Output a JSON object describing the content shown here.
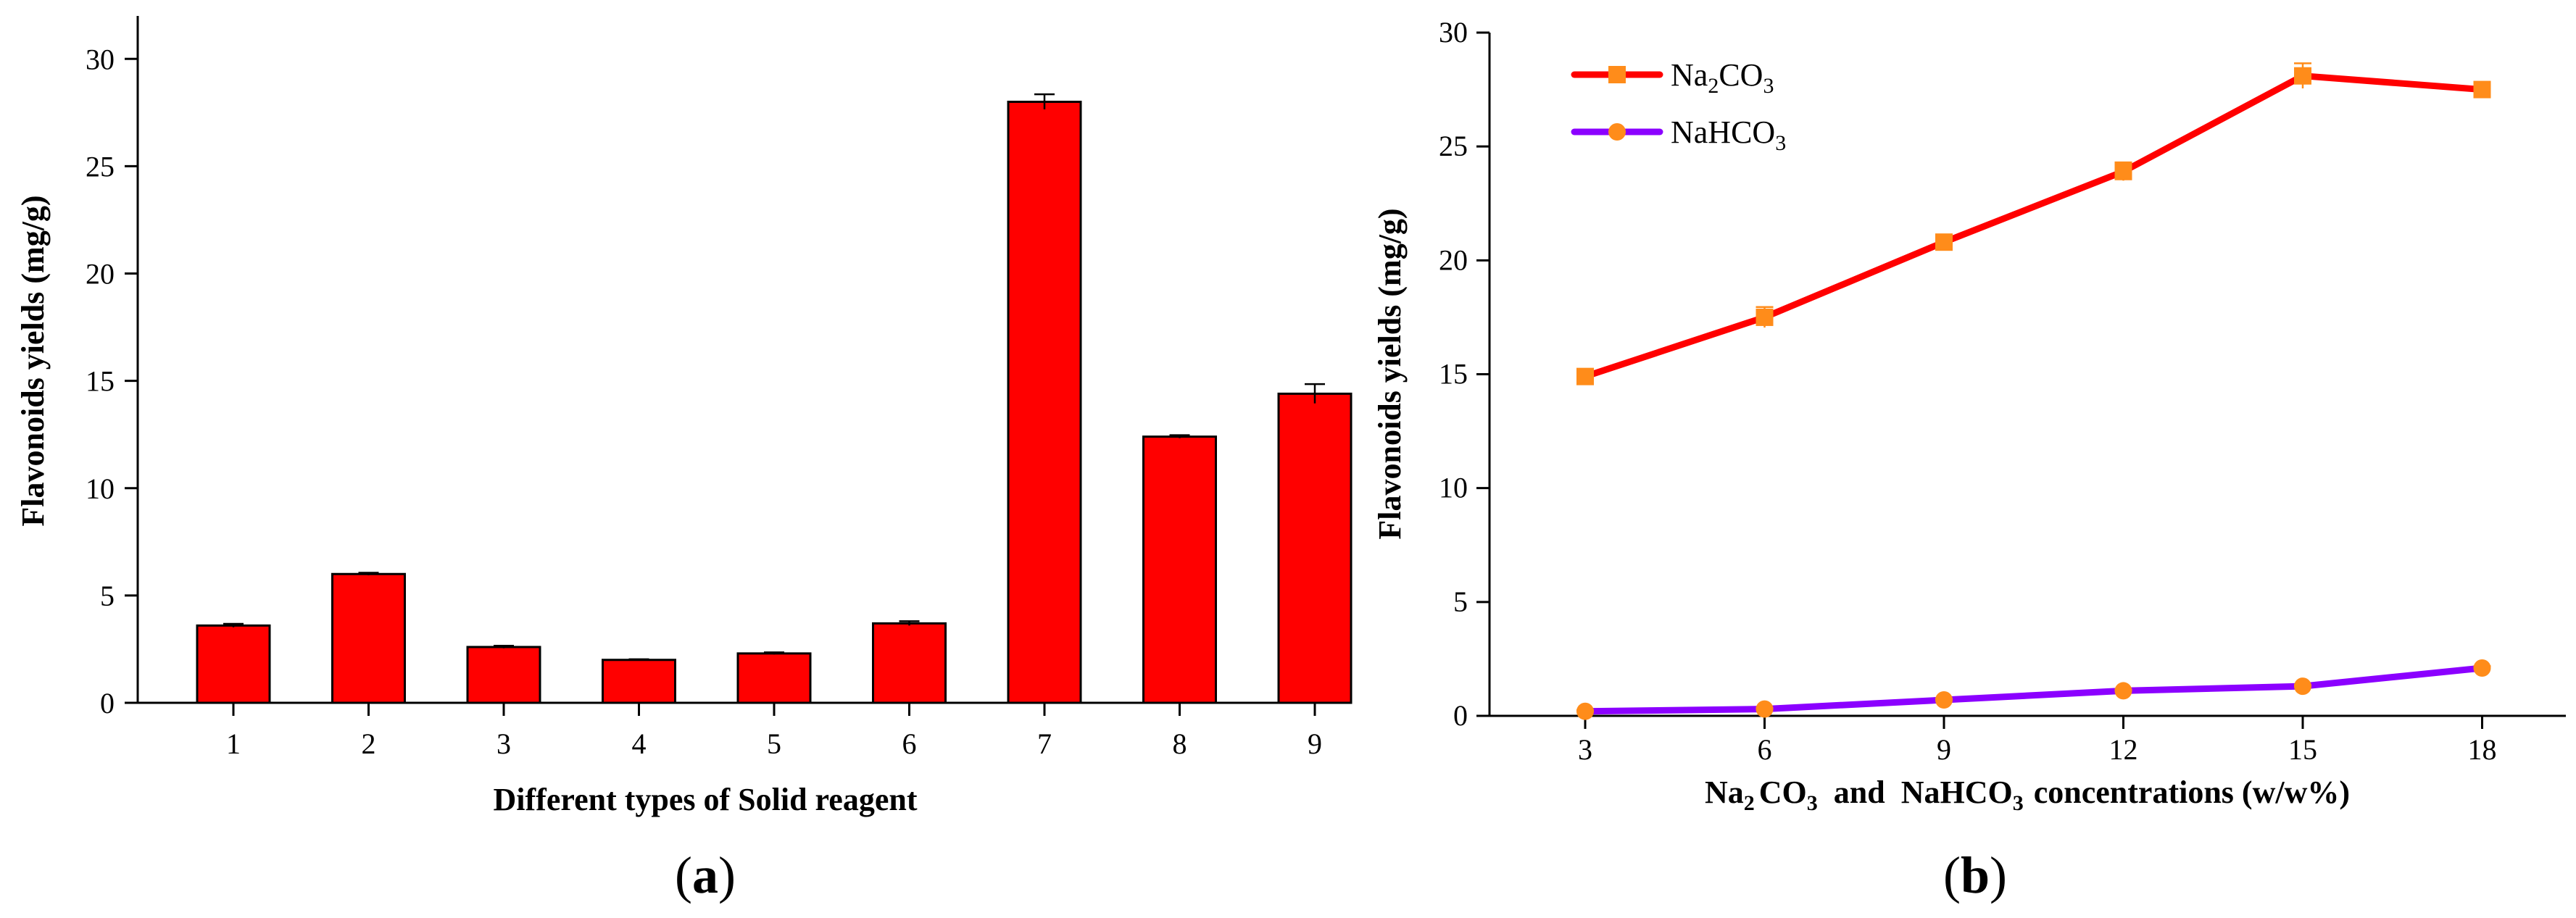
{
  "chart_data": [
    {
      "type": "bar",
      "panel_label": "a",
      "categories": [
        "1",
        "2",
        "3",
        "4",
        "5",
        "6",
        "7",
        "8",
        "9"
      ],
      "values": [
        3.6,
        6.0,
        2.6,
        2.0,
        2.3,
        3.7,
        28.0,
        12.4,
        14.4
      ],
      "errors": [
        0.08,
        0.06,
        0.06,
        0.03,
        0.05,
        0.1,
        0.35,
        0.07,
        0.45
      ],
      "xlabel": "Different types of Solid reagent",
      "ylabel": "Flavonoids yields (mg/g)",
      "ylim": [
        0,
        32
      ],
      "yticks": [
        0,
        5,
        10,
        15,
        20,
        25,
        30
      ],
      "bar_color": "#ff0000",
      "grid": false
    },
    {
      "type": "line",
      "panel_label": "b",
      "x": [
        3,
        6,
        9,
        12,
        15,
        18
      ],
      "xticks": [
        3,
        6,
        9,
        12,
        15,
        18
      ],
      "xlim": [
        1.4,
        19.4
      ],
      "ylim": [
        0,
        30
      ],
      "yticks": [
        0,
        5,
        10,
        15,
        20,
        25,
        30
      ],
      "series": [
        {
          "name": "Na2CO3",
          "legend": {
            "base": "Na",
            "sub1": "2",
            "mid": "CO",
            "sub2": "3"
          },
          "values": [
            14.9,
            17.5,
            20.8,
            23.9,
            28.1,
            27.5
          ],
          "errors": [
            0.15,
            0.45,
            0.2,
            0.4,
            0.55,
            0.3
          ],
          "line_color": "#ff0000",
          "marker": "square",
          "marker_color": "#ff8c1a"
        },
        {
          "name": "NaHCO3",
          "legend": {
            "base": "NaHCO",
            "sub1": "3"
          },
          "values": [
            0.2,
            0.3,
            0.7,
            1.1,
            1.3,
            2.1
          ],
          "errors": [
            0.05,
            0.05,
            0.06,
            0.06,
            0.06,
            0.08
          ],
          "line_color": "#8b00ff",
          "marker": "circle",
          "marker_color": "#ff8c1a"
        }
      ],
      "xlabel_parts": {
        "a": "Na",
        "a_sub": "2",
        "b": "CO",
        "b_sub": "3",
        "c": "and  NaHCO",
        "c_sub": "3",
        "d": "concentrations (w/w%)"
      },
      "ylabel": "Flavonoids yields (mg/g)",
      "legend_position": "top-left",
      "grid": false
    }
  ]
}
